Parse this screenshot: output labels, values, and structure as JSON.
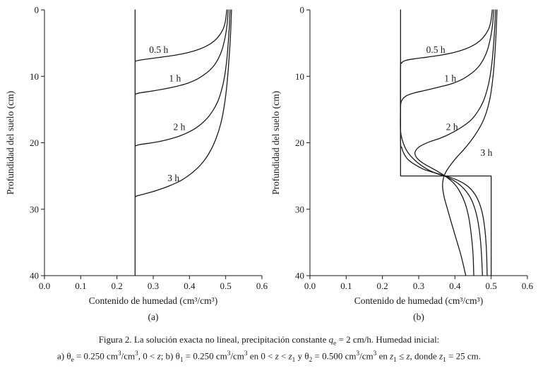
{
  "figure": {
    "caption_line1": [
      {
        "t": "Figura 2. La solución exacta no lineal, precipitación constante "
      },
      {
        "t": "q",
        "i": true
      },
      {
        "t": "e",
        "sub": true
      },
      {
        "t": " = 2 cm/h. Humedad inicial:"
      }
    ],
    "caption_line2": [
      {
        "t": "a) θ"
      },
      {
        "t": "e",
        "sub": true
      },
      {
        "t": " = 0.250 cm"
      },
      {
        "t": "3",
        "sup": true
      },
      {
        "t": "/cm"
      },
      {
        "t": "3",
        "sup": true
      },
      {
        "t": ", 0 < "
      },
      {
        "t": "z",
        "i": true
      },
      {
        "t": "; b) θ"
      },
      {
        "t": "1",
        "sub": true
      },
      {
        "t": " = 0.250 cm"
      },
      {
        "t": "3",
        "sup": true
      },
      {
        "t": "/cm"
      },
      {
        "t": "3",
        "sup": true
      },
      {
        "t": " en 0 < "
      },
      {
        "t": "z",
        "i": true
      },
      {
        "t": " < "
      },
      {
        "t": "z",
        "i": true
      },
      {
        "t": "1",
        "sub": true
      },
      {
        "t": " y θ"
      },
      {
        "t": "2",
        "sub": true
      },
      {
        "t": " = 0.500 cm"
      },
      {
        "t": "3",
        "sup": true
      },
      {
        "t": "/cm"
      },
      {
        "t": "3",
        "sup": true
      },
      {
        "t": " en "
      },
      {
        "t": "z",
        "i": true
      },
      {
        "t": "1",
        "sub": true
      },
      {
        "t": " ≤ "
      },
      {
        "t": "z",
        "i": true
      },
      {
        "t": ", donde "
      },
      {
        "t": "z",
        "i": true
      },
      {
        "t": "1",
        "sub": true
      },
      {
        "t": " = 25 cm."
      }
    ]
  },
  "chart_data": [
    {
      "type": "line",
      "panel": "a",
      "panel_label": "(a)",
      "title": "",
      "xlabel": "Contenido de humedad (cm³/cm³)",
      "ylabel": "Profundidad del suelo (cm)",
      "xlim": [
        0.0,
        0.6
      ],
      "ylim": [
        0,
        40
      ],
      "y_direction": "depth-down",
      "grid": false,
      "color": "#1a1a1a",
      "xticks": [
        0.0,
        0.1,
        0.2,
        0.3,
        0.4,
        0.5,
        0.6
      ],
      "xtick_labels": [
        "0.0",
        "0.1",
        "0.2",
        "0.3",
        "0.4",
        "0.5",
        "0.6"
      ],
      "yticks": [
        0,
        10,
        20,
        30,
        40
      ],
      "ytick_labels": [
        "0",
        "10",
        "20",
        "30",
        "40"
      ],
      "series": [
        {
          "name": "humedad-inicial-0.250",
          "straight": true,
          "points": [
            [
              0.25,
              0
            ],
            [
              0.25,
              40
            ]
          ]
        },
        {
          "name": "0.5 h",
          "points": [
            [
              0.503,
              0
            ],
            [
              0.501,
              1
            ],
            [
              0.498,
              2
            ],
            [
              0.492,
              3
            ],
            [
              0.483,
              3.8
            ],
            [
              0.47,
              4.6
            ],
            [
              0.452,
              5.3
            ],
            [
              0.428,
              5.9
            ],
            [
              0.398,
              6.4
            ],
            [
              0.362,
              6.8
            ],
            [
              0.325,
              7.1
            ],
            [
              0.29,
              7.35
            ],
            [
              0.265,
              7.55
            ],
            [
              0.252,
              7.7
            ],
            [
              0.25,
              7.9
            ]
          ]
        },
        {
          "name": "1 h",
          "points": [
            [
              0.507,
              0
            ],
            [
              0.505,
              1.5
            ],
            [
              0.502,
              3
            ],
            [
              0.497,
              4.5
            ],
            [
              0.49,
              6
            ],
            [
              0.48,
              7.3
            ],
            [
              0.466,
              8.5
            ],
            [
              0.447,
              9.5
            ],
            [
              0.422,
              10.4
            ],
            [
              0.392,
              11.1
            ],
            [
              0.357,
              11.6
            ],
            [
              0.32,
              12
            ],
            [
              0.287,
              12.3
            ],
            [
              0.262,
              12.5
            ],
            [
              0.25,
              12.7
            ]
          ]
        },
        {
          "name": "2 h",
          "points": [
            [
              0.512,
              0
            ],
            [
              0.51,
              2.5
            ],
            [
              0.507,
              5
            ],
            [
              0.503,
              7.5
            ],
            [
              0.497,
              10
            ],
            [
              0.489,
              12
            ],
            [
              0.478,
              13.8
            ],
            [
              0.463,
              15.3
            ],
            [
              0.444,
              16.6
            ],
            [
              0.42,
              17.7
            ],
            [
              0.39,
              18.6
            ],
            [
              0.355,
              19.3
            ],
            [
              0.318,
              19.8
            ],
            [
              0.285,
              20.1
            ],
            [
              0.26,
              20.3
            ],
            [
              0.25,
              20.5
            ]
          ]
        },
        {
          "name": "3 h",
          "points": [
            [
              0.516,
              0
            ],
            [
              0.514,
              3
            ],
            [
              0.511,
              6
            ],
            [
              0.507,
              9
            ],
            [
              0.502,
              12
            ],
            [
              0.495,
              14.8
            ],
            [
              0.486,
              17.2
            ],
            [
              0.473,
              19.4
            ],
            [
              0.457,
              21.3
            ],
            [
              0.436,
              23
            ],
            [
              0.41,
              24.4
            ],
            [
              0.379,
              25.6
            ],
            [
              0.344,
              26.5
            ],
            [
              0.308,
              27.2
            ],
            [
              0.276,
              27.7
            ],
            [
              0.255,
              28
            ],
            [
              0.25,
              28.2
            ]
          ]
        }
      ],
      "annotations": [
        {
          "text": "0.5 h",
          "x": 0.315,
          "y": 6.0
        },
        {
          "text": "1 h",
          "x": 0.36,
          "y": 10.3
        },
        {
          "text": "2 h",
          "x": 0.372,
          "y": 17.6
        },
        {
          "text": "3 h",
          "x": 0.356,
          "y": 25.3
        }
      ]
    },
    {
      "type": "line",
      "panel": "b",
      "panel_label": "(b)",
      "title": "",
      "xlabel": "Contenido de humedad (cm³/cm³)",
      "ylabel": "Profundidad del suelo (cm)",
      "xlim": [
        0.0,
        0.6
      ],
      "ylim": [
        0,
        40
      ],
      "y_direction": "depth-down",
      "grid": false,
      "color": "#1a1a1a",
      "xticks": [
        0.0,
        0.1,
        0.2,
        0.3,
        0.4,
        0.5,
        0.6
      ],
      "xtick_labels": [
        "0.0",
        "0.1",
        "0.2",
        "0.3",
        "0.4",
        "0.5",
        "0.6"
      ],
      "yticks": [
        0,
        10,
        20,
        30,
        40
      ],
      "ytick_labels": [
        "0",
        "10",
        "20",
        "30",
        "40"
      ],
      "series": [
        {
          "name": "humedad-inicial-escalon-0.250-0.500",
          "straight": true,
          "points": [
            [
              0.25,
              0
            ],
            [
              0.25,
              25
            ],
            [
              0.5,
              25
            ],
            [
              0.5,
              40
            ]
          ]
        },
        {
          "name": "0.5 h",
          "points": [
            [
              0.503,
              0
            ],
            [
              0.501,
              1
            ],
            [
              0.498,
              2
            ],
            [
              0.492,
              3
            ],
            [
              0.483,
              3.8
            ],
            [
              0.47,
              4.6
            ],
            [
              0.452,
              5.3
            ],
            [
              0.428,
              5.9
            ],
            [
              0.398,
              6.4
            ],
            [
              0.362,
              6.8
            ],
            [
              0.325,
              7.1
            ],
            [
              0.29,
              7.35
            ],
            [
              0.265,
              7.6
            ],
            [
              0.253,
              8
            ],
            [
              0.25,
              9
            ],
            [
              0.25,
              19.5
            ],
            [
              0.253,
              20.7
            ],
            [
              0.26,
              21.7
            ],
            [
              0.272,
              22.6
            ],
            [
              0.29,
              23.3
            ],
            [
              0.314,
              24
            ],
            [
              0.343,
              24.5
            ],
            [
              0.375,
              25
            ],
            [
              0.406,
              25.6
            ],
            [
              0.432,
              26.4
            ],
            [
              0.452,
              27.5
            ],
            [
              0.466,
              28.9
            ],
            [
              0.476,
              30.7
            ],
            [
              0.483,
              33.2
            ],
            [
              0.487,
              36.2
            ],
            [
              0.489,
              40
            ]
          ]
        },
        {
          "name": "1 h",
          "points": [
            [
              0.507,
              0
            ],
            [
              0.505,
              1.5
            ],
            [
              0.502,
              3
            ],
            [
              0.497,
              4.5
            ],
            [
              0.49,
              6
            ],
            [
              0.48,
              7.3
            ],
            [
              0.466,
              8.5
            ],
            [
              0.447,
              9.5
            ],
            [
              0.422,
              10.4
            ],
            [
              0.392,
              11.1
            ],
            [
              0.357,
              11.6
            ],
            [
              0.32,
              12.1
            ],
            [
              0.288,
              12.5
            ],
            [
              0.264,
              13
            ],
            [
              0.252,
              13.8
            ],
            [
              0.25,
              15
            ],
            [
              0.25,
              18.2
            ],
            [
              0.255,
              19.6
            ],
            [
              0.264,
              20.9
            ],
            [
              0.278,
              22
            ],
            [
              0.297,
              23
            ],
            [
              0.321,
              23.9
            ],
            [
              0.348,
              24.6
            ],
            [
              0.375,
              25.1
            ],
            [
              0.403,
              25.9
            ],
            [
              0.426,
              27
            ],
            [
              0.444,
              28.4
            ],
            [
              0.456,
              30.1
            ],
            [
              0.465,
              32.3
            ],
            [
              0.471,
              35
            ],
            [
              0.474,
              37.5
            ],
            [
              0.476,
              40
            ]
          ]
        },
        {
          "name": "2 h",
          "points": [
            [
              0.512,
              0
            ],
            [
              0.51,
              2.5
            ],
            [
              0.507,
              5
            ],
            [
              0.503,
              7.5
            ],
            [
              0.497,
              10
            ],
            [
              0.489,
              12
            ],
            [
              0.478,
              13.8
            ],
            [
              0.463,
              15.3
            ],
            [
              0.444,
              16.6
            ],
            [
              0.42,
              17.6
            ],
            [
              0.392,
              18.5
            ],
            [
              0.36,
              19.3
            ],
            [
              0.328,
              19.9
            ],
            [
              0.302,
              20.6
            ],
            [
              0.29,
              21.4
            ],
            [
              0.294,
              22.2
            ],
            [
              0.31,
              23
            ],
            [
              0.332,
              23.7
            ],
            [
              0.355,
              24.4
            ],
            [
              0.375,
              25.1
            ],
            [
              0.397,
              26.1
            ],
            [
              0.414,
              27.4
            ],
            [
              0.428,
              29.1
            ],
            [
              0.438,
              31.2
            ],
            [
              0.445,
              33.8
            ],
            [
              0.45,
              36.8
            ],
            [
              0.452,
              40
            ]
          ]
        },
        {
          "name": "3 h",
          "points": [
            [
              0.516,
              0
            ],
            [
              0.514,
              3
            ],
            [
              0.511,
              6
            ],
            [
              0.507,
              9
            ],
            [
              0.502,
              11.5
            ],
            [
              0.496,
              13.5
            ],
            [
              0.488,
              15.2
            ],
            [
              0.477,
              16.8
            ],
            [
              0.463,
              18.2
            ],
            [
              0.447,
              19.5
            ],
            [
              0.428,
              20.8
            ],
            [
              0.408,
              22
            ],
            [
              0.39,
              23.2
            ],
            [
              0.376,
              24.3
            ],
            [
              0.368,
              25.4
            ],
            [
              0.366,
              26.6
            ],
            [
              0.37,
              28.1
            ],
            [
              0.379,
              29.9
            ],
            [
              0.39,
              32
            ],
            [
              0.403,
              34.4
            ],
            [
              0.417,
              37
            ],
            [
              0.43,
              40
            ]
          ]
        }
      ],
      "annotations": [
        {
          "text": "0.5 h",
          "x": 0.347,
          "y": 6.0
        },
        {
          "text": "1 h",
          "x": 0.387,
          "y": 10.3
        },
        {
          "text": "2 h",
          "x": 0.392,
          "y": 17.6
        },
        {
          "text": "3 h",
          "x": 0.487,
          "y": 21.5
        }
      ]
    }
  ]
}
